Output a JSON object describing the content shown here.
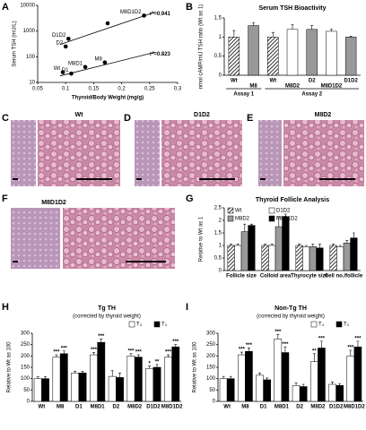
{
  "chart_data": [
    {
      "type": "scatter",
      "panel": "A",
      "ylabel": "Serum TSH (mU/L)",
      "xlabel": "Thyroid/Body Weight (mg/g)",
      "xlim": [
        0.05,
        0.3
      ],
      "xticks": [
        0.05,
        0.1,
        0.15,
        0.2,
        0.25,
        0.3
      ],
      "ylim": [
        10,
        10000
      ],
      "yticks": [
        10,
        100,
        1000,
        10000
      ],
      "ylog": true,
      "color": "#000000",
      "points": {
        "x": [
          0.1,
          0.105,
          0.175,
          0.24,
          0.095,
          0.11,
          0.135,
          0.17
        ],
        "y": [
          250,
          500,
          2000,
          4000,
          25,
          22,
          40,
          60
        ],
        "labels": [
          "D2",
          "D1D2",
          null,
          "M8D1D2",
          "Wt",
          "D1",
          "M8D1",
          "M8"
        ]
      },
      "fits": [
        {
          "x": [
            0.09,
            0.26
          ],
          "y": [
            300,
            5500
          ],
          "label": "r²=0.941"
        },
        {
          "x": [
            0.09,
            0.26
          ],
          "y": [
            18,
            150
          ],
          "label": "r²=0.823"
        }
      ]
    },
    {
      "type": "bar",
      "panel": "B",
      "title": "Serum TSH Bioactivity",
      "ylabel": "nmol cAMP/mU TSH ratio (Wt as 1)",
      "ylim": [
        0,
        1.5
      ],
      "yticks": [
        0,
        0.5,
        1,
        1.5
      ],
      "categories": [
        "Wt",
        "M8",
        "Wt",
        "M8D2",
        "D2",
        "M8D1D2",
        "D1D2"
      ],
      "values": [
        1,
        1.3,
        1,
        1.2,
        1.2,
        1.15,
        1.0
      ],
      "errors": [
        0.17,
        0.08,
        0.12,
        0.13,
        0.1,
        0.06,
        0.02
      ],
      "colors": [
        "hatch",
        "#999999",
        "hatch",
        "#ffffff",
        "#999999",
        "#ffffff",
        "#999999"
      ],
      "groups": [
        {
          "name": "Assay 1",
          "size": 2
        },
        {
          "name": "Assay 2",
          "size": 5
        }
      ]
    },
    {
      "type": "bar",
      "panel": "G",
      "title": "Thyroid Follicle Analysis",
      "ylabel": "Relative to Wt as 1",
      "ylim": [
        0,
        2.5
      ],
      "yticks": [
        0,
        0.5,
        1,
        1.5,
        2,
        2.5
      ],
      "legend": "top-left",
      "categories": [
        "Follicle size",
        "Colloid area",
        "Thyrocyte size",
        "Cell no./follicle"
      ],
      "series": [
        {
          "name": "Wt",
          "color": "hatch",
          "values": [
            1,
            1,
            1,
            1
          ],
          "errors": [
            0.05,
            0.05,
            0.05,
            0.05
          ]
        },
        {
          "name": "D1D2",
          "color": "#ffffff",
          "values": [
            1,
            1,
            0.95,
            0.95
          ],
          "errors": [
            0.05,
            0.05,
            0.05,
            0.05
          ]
        },
        {
          "name": "M8D2",
          "color": "#999999",
          "values": [
            1.55,
            1.75,
            0.95,
            1.1
          ],
          "errors": [
            0.3,
            0.4,
            0.1,
            0.1
          ]
        },
        {
          "name": "M8D1D2",
          "color": "#000000",
          "values": [
            1.8,
            2.15,
            0.9,
            1.3
          ],
          "errors": [
            0.05,
            0.1,
            0.15,
            0.2
          ]
        }
      ]
    },
    {
      "type": "bar",
      "panel": "H",
      "title": "Tg TH",
      "subtitle": "(corrected by thyroid weight)",
      "ylabel": "Relative to Wt as 100",
      "ylim": [
        0,
        300
      ],
      "yticks": [
        0,
        50,
        100,
        150,
        200,
        250,
        300
      ],
      "legend": "top-right",
      "categories": [
        "Wt",
        "M8",
        "D1",
        "M8D1",
        "D2",
        "M8D2",
        "D1D2",
        "M8D1D2"
      ],
      "series": [
        {
          "name": "T₄",
          "color": "#ffffff",
          "values": [
            100,
            195,
            125,
            205,
            110,
            200,
            145,
            195
          ],
          "errors": [
            8,
            10,
            8,
            10,
            25,
            10,
            10,
            10
          ],
          "stars": [
            null,
            "***",
            null,
            "***",
            null,
            "***",
            "*",
            "***"
          ]
        },
        {
          "name": "T₃",
          "color": "#000000",
          "values": [
            100,
            210,
            125,
            260,
            105,
            195,
            150,
            240
          ],
          "errors": [
            8,
            12,
            8,
            15,
            20,
            10,
            12,
            10
          ],
          "stars": [
            null,
            "***",
            null,
            "***",
            null,
            "***",
            "**",
            "***"
          ]
        }
      ]
    },
    {
      "type": "bar",
      "panel": "I",
      "title": "Non-Tg TH",
      "subtitle": "(corrected by thyroid weight)",
      "ylabel": "Relative to Wt as 100",
      "ylim": [
        0,
        300
      ],
      "yticks": [
        0,
        50,
        100,
        150,
        200,
        250,
        300
      ],
      "legend": "top-right",
      "categories": [
        "Wt",
        "M8",
        "D1",
        "M8D1",
        "D2",
        "M8D2",
        "D1D2",
        "M8D1D2"
      ],
      "series": [
        {
          "name": "T₄",
          "color": "#ffffff",
          "values": [
            100,
            205,
            115,
            275,
            70,
            175,
            75,
            200
          ],
          "errors": [
            10,
            12,
            10,
            20,
            10,
            35,
            10,
            25
          ],
          "stars": [
            null,
            "***",
            null,
            "***",
            null,
            "**",
            null,
            "***"
          ]
        },
        {
          "name": "T₃",
          "color": "#000000",
          "values": [
            100,
            220,
            95,
            215,
            65,
            235,
            70,
            240
          ],
          "errors": [
            10,
            15,
            8,
            25,
            10,
            30,
            8,
            25
          ],
          "stars": [
            null,
            "***",
            null,
            "***",
            null,
            "***",
            null,
            "***"
          ]
        }
      ]
    }
  ],
  "figures": [
    {
      "panel": "C",
      "label": "Wt"
    },
    {
      "panel": "D",
      "label": "D1D2"
    },
    {
      "panel": "E",
      "label": "M8D2"
    },
    {
      "panel": "F",
      "label": "M8D1D2"
    }
  ]
}
